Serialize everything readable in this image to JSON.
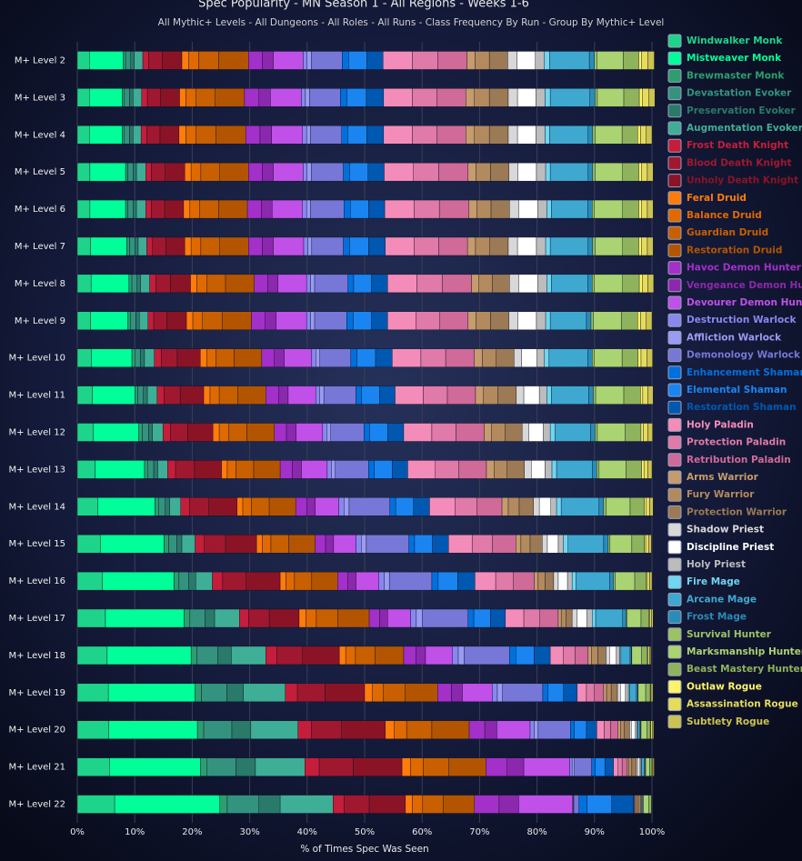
{
  "chart_data": {
    "type": "bar",
    "title": "Spec Popularity - MN Season 1 - All Regions - Weeks 1-6",
    "subtitle": "All Mythic+ Levels - All Dungeons - All Roles - All Runs - Class Frequency By Run - Group By Mythic+ Level",
    "x_label": "% of Times Spec Was Seen",
    "categories": [
      "M+ Level 2",
      "M+ Level 3",
      "M+ Level 4",
      "M+ Level 5",
      "M+ Level 6",
      "M+ Level 7",
      "M+ Level 8",
      "M+ Level 9",
      "M+ Level 10",
      "M+ Level 11",
      "M+ Level 12",
      "M+ Level 13",
      "M+ Level 14",
      "M+ Level 15",
      "M+ Level 16",
      "M+ Level 17",
      "M+ Level 18",
      "M+ Level 19",
      "M+ Level 20",
      "M+ Level 21",
      "M+ Level 22"
    ],
    "xlim": [
      0,
      100
    ],
    "xticks": [
      {
        "value": 0,
        "label": "0%"
      },
      {
        "value": 10,
        "label": "10%"
      },
      {
        "value": 20,
        "label": "20%"
      },
      {
        "value": 30,
        "label": "30%"
      },
      {
        "value": 40,
        "label": "40%"
      },
      {
        "value": 50,
        "label": "50%"
      },
      {
        "value": 60,
        "label": "60%"
      },
      {
        "value": 70,
        "label": "70%"
      },
      {
        "value": 80,
        "label": "80%"
      },
      {
        "value": 90,
        "label": "90%"
      },
      {
        "value": 100,
        "label": "100%"
      }
    ],
    "grid": true,
    "series": [
      {
        "name": "Windwalker Monk",
        "color": "#1ed48a",
        "values": [
          2.1,
          2.1,
          2.1,
          2.2,
          2.2,
          2.3,
          2.4,
          2.3,
          2.5,
          2.6,
          2.8,
          3.1,
          3.6,
          4.0,
          4.4,
          4.9,
          5.2,
          5.4,
          5.5,
          5.6,
          6.5
        ]
      },
      {
        "name": "Mistweaver Monk",
        "color": "#00ff98",
        "values": [
          5.9,
          5.7,
          5.7,
          6.2,
          6.2,
          6.3,
          6.6,
          6.5,
          7.0,
          7.4,
          7.9,
          8.6,
          9.9,
          11.1,
          12.4,
          13.7,
          14.6,
          15.1,
          15.4,
          15.8,
          18.3
        ]
      },
      {
        "name": "Brewmaster Monk",
        "color": "#2e9e6e",
        "values": [
          0.4,
          0.4,
          0.4,
          0.4,
          0.4,
          0.5,
          0.5,
          0.5,
          0.5,
          0.5,
          0.6,
          0.6,
          0.7,
          0.8,
          0.9,
          1.0,
          1.0,
          1.1,
          1.1,
          1.1,
          1.3
        ]
      },
      {
        "name": "Devastation Evoker",
        "color": "#33937f",
        "values": [
          0.9,
          0.9,
          0.9,
          0.9,
          0.9,
          0.9,
          0.9,
          0.9,
          1.0,
          1.0,
          1.1,
          1.0,
          1.1,
          1.4,
          1.7,
          2.6,
          3.6,
          4.4,
          4.9,
          5.1,
          5.5
        ]
      },
      {
        "name": "Preservation Evoker",
        "color": "#2a7a69",
        "values": [
          0.6,
          0.6,
          0.6,
          0.6,
          0.6,
          0.6,
          0.6,
          0.6,
          0.7,
          0.7,
          0.7,
          0.7,
          0.8,
          0.9,
          1.2,
          1.7,
          2.4,
          2.9,
          3.3,
          3.4,
          3.7
        ]
      },
      {
        "name": "Augmentation Evoker",
        "color": "#3fae96",
        "values": [
          1.5,
          1.5,
          1.4,
          1.6,
          1.6,
          1.5,
          1.6,
          1.5,
          1.7,
          1.7,
          1.8,
          1.7,
          1.9,
          2.3,
          2.9,
          4.3,
          6.0,
          7.3,
          8.2,
          8.6,
          9.2
        ]
      },
      {
        "name": "Frost Death Knight",
        "color": "#c41e3a",
        "values": [
          1.0,
          1.0,
          1.0,
          1.0,
          1.0,
          1.0,
          1.1,
          1.0,
          1.2,
          1.2,
          1.3,
          1.4,
          1.5,
          1.6,
          1.8,
          1.6,
          1.9,
          2.1,
          2.3,
          2.5,
          1.9
        ]
      },
      {
        "name": "Blood Death Knight",
        "color": "#a01830",
        "values": [
          2.4,
          2.3,
          2.3,
          2.4,
          2.3,
          2.3,
          2.5,
          2.3,
          2.8,
          2.8,
          3.0,
          3.3,
          3.4,
          3.7,
          4.1,
          3.6,
          4.5,
          4.8,
          5.3,
          5.9,
          4.4
        ]
      },
      {
        "name": "Unholy Death Knight",
        "color": "#8a1426",
        "values": [
          3.4,
          3.3,
          3.3,
          3.4,
          3.3,
          3.3,
          3.5,
          3.4,
          4.0,
          4.1,
          4.4,
          4.7,
          4.9,
          5.4,
          5.9,
          5.2,
          6.4,
          6.9,
          7.6,
          8.5,
          6.3
        ]
      },
      {
        "name": "Feral Druid",
        "color": "#ff7c0a",
        "values": [
          1.2,
          1.1,
          1.2,
          1.1,
          1.1,
          1.1,
          1.1,
          1.1,
          1.1,
          1.1,
          1.1,
          1.0,
          1.0,
          1.0,
          1.0,
          1.2,
          1.1,
          1.3,
          1.5,
          1.5,
          1.2
        ]
      },
      {
        "name": "Balance Druid",
        "color": "#e06a00",
        "values": [
          1.7,
          1.7,
          1.7,
          1.7,
          1.7,
          1.7,
          1.7,
          1.7,
          1.6,
          1.6,
          1.6,
          1.5,
          1.5,
          1.5,
          1.5,
          1.8,
          1.7,
          1.9,
          2.2,
          2.2,
          1.8
        ]
      },
      {
        "name": "Guardian Druid",
        "color": "#c85f00",
        "values": [
          3.5,
          3.4,
          3.5,
          3.3,
          3.3,
          3.3,
          3.3,
          3.4,
          3.2,
          3.2,
          3.2,
          3.1,
          3.1,
          3.1,
          3.0,
          3.7,
          3.4,
          3.8,
          4.4,
          4.4,
          3.6
        ]
      },
      {
        "name": "Restoration Druid",
        "color": "#b35500",
        "values": [
          5.2,
          5.1,
          5.2,
          5.0,
          5.0,
          5.0,
          5.0,
          5.1,
          4.8,
          4.9,
          4.8,
          4.6,
          4.6,
          4.6,
          4.5,
          5.5,
          5.0,
          5.7,
          6.5,
          6.5,
          5.4
        ]
      },
      {
        "name": "Havoc Demon Hunter",
        "color": "#a330c9",
        "values": [
          2.4,
          2.5,
          2.5,
          2.4,
          2.4,
          2.4,
          2.3,
          2.4,
          2.2,
          2.2,
          2.1,
          2.1,
          1.9,
          1.8,
          1.8,
          1.8,
          2.1,
          2.4,
          2.7,
          3.7,
          4.3
        ]
      },
      {
        "name": "Vengeance Demon Hunter",
        "color": "#8c28ad",
        "values": [
          1.9,
          2.0,
          2.0,
          1.9,
          1.9,
          1.9,
          1.8,
          1.9,
          1.7,
          1.7,
          1.7,
          1.6,
          1.5,
          1.4,
          1.4,
          1.4,
          1.7,
          1.9,
          2.1,
          2.9,
          3.4
        ]
      },
      {
        "name": "Devourer Demon Hunter",
        "color": "#c050e8",
        "values": [
          5.2,
          5.4,
          5.4,
          5.2,
          5.3,
          5.3,
          5.0,
          5.3,
          4.8,
          4.8,
          4.6,
          4.5,
          4.1,
          3.9,
          4.0,
          4.0,
          4.7,
          5.2,
          5.8,
          8.0,
          9.4
        ]
      },
      {
        "name": "Destruction Warlock",
        "color": "#8788ee",
        "values": [
          0.7,
          0.7,
          0.7,
          0.7,
          0.7,
          0.7,
          0.7,
          0.7,
          0.7,
          0.7,
          0.7,
          0.7,
          0.9,
          0.9,
          0.9,
          1.0,
          1.0,
          0.9,
          0.7,
          0.4,
          0.1
        ]
      },
      {
        "name": "Affliction Warlock",
        "color": "#9a9bf2",
        "values": [
          0.7,
          0.7,
          0.7,
          0.7,
          0.7,
          0.7,
          0.7,
          0.7,
          0.7,
          0.7,
          0.7,
          0.7,
          0.9,
          0.9,
          0.9,
          1.0,
          1.0,
          0.9,
          0.7,
          0.4,
          0.1
        ]
      },
      {
        "name": "Demonology Warlock",
        "color": "#7677d6",
        "values": [
          5.4,
          5.4,
          5.4,
          5.6,
          5.8,
          5.5,
          5.8,
          5.6,
          5.4,
          5.6,
          5.8,
          5.8,
          7.1,
          7.4,
          7.4,
          8.0,
          7.9,
          7.0,
          5.6,
          3.0,
          0.9
        ]
      },
      {
        "name": "Enhancement Shaman",
        "color": "#0070dd",
        "values": [
          1.1,
          1.1,
          1.1,
          1.1,
          1.1,
          1.1,
          1.0,
          1.1,
          1.1,
          1.0,
          1.0,
          1.0,
          1.0,
          1.0,
          1.1,
          1.0,
          1.1,
          0.9,
          0.7,
          0.6,
          1.4
        ]
      },
      {
        "name": "Elemental Shaman",
        "color": "#1a85f0",
        "values": [
          3.2,
          3.4,
          3.3,
          3.2,
          3.2,
          3.3,
          3.1,
          3.2,
          3.2,
          3.1,
          3.1,
          3.1,
          3.1,
          3.1,
          3.4,
          2.9,
          3.2,
          2.7,
          2.1,
          1.7,
          4.3
        ]
      },
      {
        "name": "Restoration Shaman",
        "color": "#0058b0",
        "values": [
          2.8,
          3.0,
          2.9,
          2.8,
          2.8,
          2.9,
          2.8,
          2.8,
          2.9,
          2.7,
          2.8,
          2.7,
          2.8,
          2.8,
          3.0,
          2.6,
          2.8,
          2.4,
          1.8,
          1.5,
          3.8
        ]
      },
      {
        "name": "Holy Paladin",
        "color": "#f48cba",
        "values": [
          5.1,
          5.0,
          5.0,
          5.1,
          5.1,
          5.0,
          5.1,
          4.9,
          5.0,
          4.9,
          4.9,
          4.8,
          4.4,
          4.1,
          3.6,
          3.2,
          2.3,
          1.6,
          1.3,
          0.8,
          0.1
        ]
      },
      {
        "name": "Protection Paladin",
        "color": "#e07aa8",
        "values": [
          4.4,
          4.3,
          4.3,
          4.4,
          4.4,
          4.3,
          4.4,
          4.2,
          4.3,
          4.2,
          4.2,
          4.1,
          3.8,
          3.5,
          3.1,
          2.8,
          2.0,
          1.4,
          1.1,
          0.7,
          0.0
        ]
      },
      {
        "name": "Retribution Paladin",
        "color": "#d06a98",
        "values": [
          5.1,
          5.0,
          5.0,
          5.1,
          5.1,
          5.0,
          5.1,
          4.9,
          5.0,
          4.9,
          4.9,
          4.8,
          4.4,
          4.1,
          3.6,
          3.2,
          2.3,
          1.6,
          1.3,
          0.8,
          0.1
        ]
      },
      {
        "name": "Arms Warrior",
        "color": "#c69b6d",
        "values": [
          1.4,
          1.5,
          1.5,
          1.4,
          1.4,
          1.4,
          1.3,
          1.4,
          1.4,
          1.4,
          1.3,
          1.3,
          1.1,
          0.9,
          0.7,
          0.5,
          0.6,
          0.5,
          0.4,
          0.3,
          0.2
        ]
      },
      {
        "name": "Fury Warrior",
        "color": "#b38a5e",
        "values": [
          2.5,
          2.6,
          2.6,
          2.5,
          2.5,
          2.5,
          2.3,
          2.5,
          2.4,
          2.5,
          2.3,
          2.3,
          1.9,
          1.6,
          1.2,
          0.8,
          1.1,
          0.8,
          0.7,
          0.6,
          0.4
        ]
      },
      {
        "name": "Protection Warrior",
        "color": "#9c7a55",
        "values": [
          3.2,
          3.3,
          3.3,
          3.2,
          3.2,
          3.2,
          3.0,
          3.2,
          3.1,
          3.2,
          3.0,
          3.0,
          2.5,
          2.1,
          1.5,
          1.1,
          1.4,
          1.1,
          0.9,
          0.8,
          0.5
        ]
      },
      {
        "name": "Shadow Priest",
        "color": "#d8d8d8",
        "values": [
          1.6,
          1.6,
          1.6,
          1.6,
          1.6,
          1.6,
          1.6,
          1.6,
          1.3,
          1.3,
          1.2,
          1.2,
          1.0,
          0.9,
          0.8,
          0.9,
          0.6,
          0.5,
          0.3,
          0.2,
          0.0
        ]
      },
      {
        "name": "Discipline Priest",
        "color": "#ffffff",
        "values": [
          3.2,
          3.2,
          3.2,
          3.2,
          3.3,
          3.3,
          3.3,
          3.2,
          2.7,
          2.7,
          2.5,
          2.4,
          2.0,
          1.9,
          1.6,
          1.7,
          1.2,
          0.9,
          0.7,
          0.4,
          0.1
        ]
      },
      {
        "name": "Holy Priest",
        "color": "#bcbcbc",
        "values": [
          1.6,
          1.6,
          1.6,
          1.6,
          1.6,
          1.6,
          1.6,
          1.6,
          1.3,
          1.3,
          1.2,
          1.2,
          1.0,
          0.9,
          0.8,
          0.9,
          0.6,
          0.5,
          0.3,
          0.2,
          0.0
        ]
      },
      {
        "name": "Fire Mage",
        "color": "#6fd6f2",
        "values": [
          0.9,
          0.9,
          0.8,
          0.8,
          0.8,
          0.8,
          0.8,
          0.8,
          0.8,
          0.8,
          0.8,
          0.8,
          0.8,
          0.8,
          0.7,
          0.6,
          0.2,
          0.2,
          0.1,
          0.1,
          0.0
        ]
      },
      {
        "name": "Arcane Mage",
        "color": "#3fa8d0",
        "values": [
          6.9,
          6.9,
          6.7,
          6.6,
          6.3,
          6.6,
          6.3,
          6.3,
          6.7,
          6.5,
          6.2,
          6.2,
          6.6,
          6.2,
          5.8,
          4.7,
          1.6,
          1.2,
          0.4,
          0.5,
          0.2
        ]
      },
      {
        "name": "Frost Mage",
        "color": "#2a8cb8",
        "values": [
          0.9,
          0.9,
          0.8,
          0.8,
          0.8,
          0.8,
          0.8,
          0.8,
          0.8,
          0.8,
          0.8,
          0.8,
          0.8,
          0.8,
          0.7,
          0.6,
          0.2,
          0.2,
          0.1,
          0.1,
          0.0
        ]
      },
      {
        "name": "Survival Hunter",
        "color": "#9bc264",
        "values": [
          0.4,
          0.4,
          0.4,
          0.4,
          0.4,
          0.4,
          0.4,
          0.4,
          0.4,
          0.4,
          0.4,
          0.4,
          0.4,
          0.3,
          0.3,
          0.2,
          0.1,
          0.1,
          0.1,
          0.1,
          0.1
        ]
      },
      {
        "name": "Marksmanship Hunter",
        "color": "#aad372",
        "values": [
          4.6,
          4.6,
          4.7,
          4.8,
          4.9,
          4.8,
          4.9,
          4.9,
          4.8,
          4.9,
          4.8,
          4.7,
          4.2,
          3.8,
          3.4,
          2.4,
          1.7,
          1.3,
          1.0,
          0.7,
          0.9
        ]
      },
      {
        "name": "Beast Mastery Hunter",
        "color": "#8fb35d",
        "values": [
          2.7,
          2.7,
          2.7,
          2.8,
          2.8,
          2.8,
          2.9,
          2.8,
          2.8,
          2.9,
          2.8,
          2.7,
          2.5,
          2.2,
          2.0,
          1.4,
          1.0,
          0.8,
          0.6,
          0.4,
          0.5
        ]
      },
      {
        "name": "Outlaw Rogue",
        "color": "#fff468",
        "values": [
          0.5,
          0.5,
          0.5,
          0.5,
          0.5,
          0.5,
          0.5,
          0.5,
          0.5,
          0.4,
          0.4,
          0.4,
          0.3,
          0.2,
          0.2,
          0.1,
          0.1,
          0.1,
          0.1,
          0.1,
          0
        ]
      },
      {
        "name": "Assassination Rogue",
        "color": "#e6dc5c",
        "values": [
          1.1,
          1.1,
          1.0,
          1.0,
          1.0,
          1.0,
          1.0,
          1.0,
          1.0,
          0.9,
          0.8,
          0.7,
          0.6,
          0.5,
          0.4,
          0.3,
          0.3,
          0.2,
          0.3,
          0.2,
          0
        ]
      },
      {
        "name": "Subtlety Rogue",
        "color": "#ccc350",
        "values": [
          1.1,
          1.1,
          1.0,
          1.0,
          1.0,
          1.0,
          1.0,
          1.0,
          1.0,
          0.9,
          0.8,
          0.7,
          0.6,
          0.5,
          0.4,
          0.3,
          0.2,
          0.2,
          0.2,
          0.1,
          0
        ]
      }
    ]
  }
}
